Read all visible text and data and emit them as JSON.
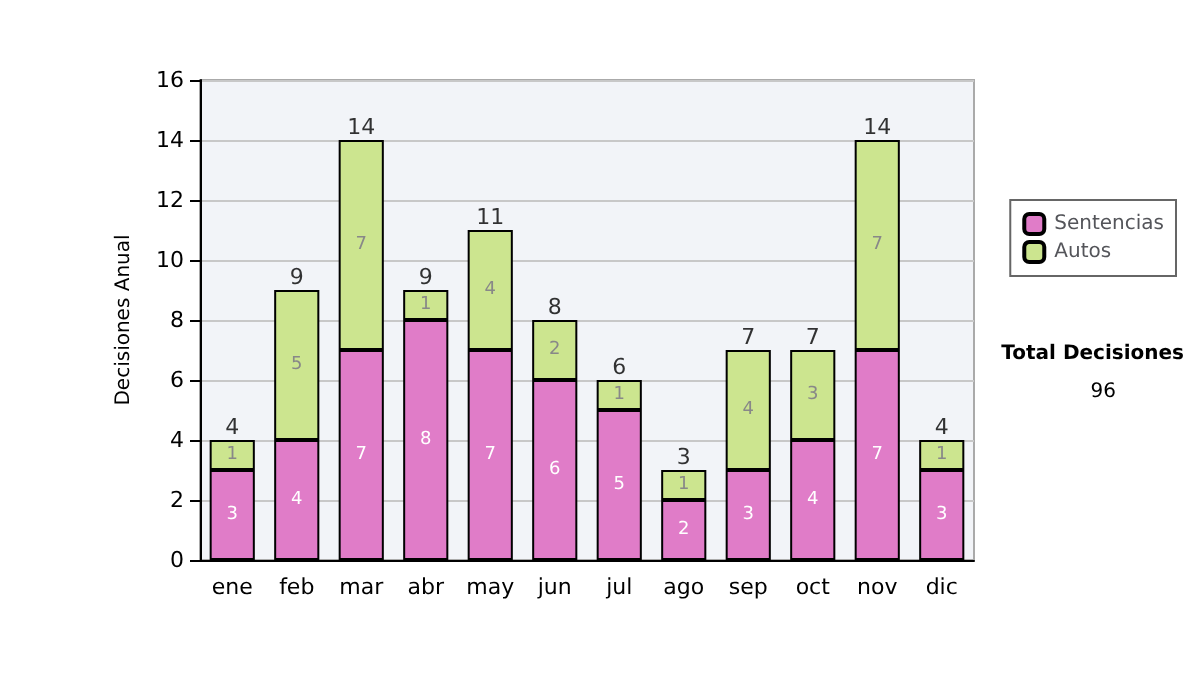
{
  "chart_data": {
    "type": "bar",
    "stacked": true,
    "ylabel": "Decisiones Anual",
    "categories": [
      "ene",
      "feb",
      "mar",
      "abr",
      "may",
      "jun",
      "jul",
      "ago",
      "sep",
      "oct",
      "nov",
      "dic"
    ],
    "series": [
      {
        "name": "Sentencias",
        "color": "#e07cc8",
        "values": [
          3,
          4,
          7,
          8,
          7,
          6,
          5,
          2,
          3,
          4,
          7,
          3
        ]
      },
      {
        "name": "Autos",
        "color": "#cce58f",
        "values": [
          1,
          5,
          7,
          1,
          4,
          2,
          1,
          1,
          4,
          3,
          7,
          1
        ]
      }
    ],
    "totals": [
      "4",
      "9",
      "14",
      "9",
      "11",
      "8",
      "6",
      "3",
      "7",
      "7",
      "14",
      "4"
    ],
    "data_labels": true,
    "ylim": [
      0,
      16
    ],
    "yticks": [
      0,
      2,
      4,
      6,
      8,
      10,
      12,
      14,
      16
    ],
    "grid": "y",
    "legend": "right",
    "annotations": [
      "Total Decisiones",
      "96"
    ]
  }
}
